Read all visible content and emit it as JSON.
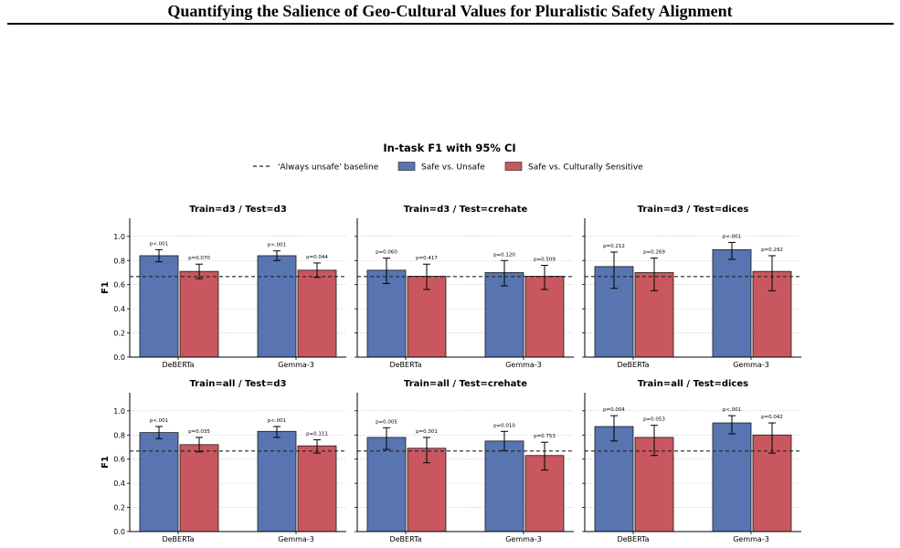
{
  "page": {
    "title": "Quantifying the Salience of Geo-Cultural Values for Pluralistic Safety Alignment"
  },
  "chart_data": {
    "type": "bar",
    "title": "In-task F1 with 95% CI",
    "ylabel": "F1",
    "ylim": [
      0,
      1.15
    ],
    "yticks": [
      "0.0",
      "0.2",
      "0.4",
      "0.6",
      "0.8",
      "1.0"
    ],
    "grid": "horizontal dotted",
    "legend": {
      "position": "top-center",
      "entries": [
        "'Always unsafe' baseline",
        "Safe vs. Unsafe",
        "Safe vs. Culturally Sensitive"
      ]
    },
    "colors": {
      "safe_unsafe": "#5875b1",
      "safe_cultural": "#c8575f",
      "edge": "#1a1a1a",
      "baseline": "#222222"
    },
    "categories": [
      "DeBERTa",
      "Gemma-3"
    ],
    "panels": [
      {
        "title": "Train=d3  /  Test=d3",
        "baseline": 0.667,
        "groups": [
          {
            "category": "DeBERTa",
            "bars": [
              {
                "value": 0.84,
                "ci": [
                  0.79,
                  0.89
                ],
                "p": "p<.001"
              },
              {
                "value": 0.71,
                "ci": [
                  0.65,
                  0.77
                ],
                "p": "p=0.070"
              }
            ]
          },
          {
            "category": "Gemma-3",
            "bars": [
              {
                "value": 0.84,
                "ci": [
                  0.8,
                  0.88
                ],
                "p": "p<.001"
              },
              {
                "value": 0.72,
                "ci": [
                  0.66,
                  0.78
                ],
                "p": "p=0.044"
              }
            ]
          }
        ]
      },
      {
        "title": "Train=d3  /  Test=crehate",
        "baseline": 0.667,
        "groups": [
          {
            "category": "DeBERTa",
            "bars": [
              {
                "value": 0.72,
                "ci": [
                  0.61,
                  0.82
                ],
                "p": "p=0.060"
              },
              {
                "value": 0.67,
                "ci": [
                  0.56,
                  0.77
                ],
                "p": "p=0.417"
              }
            ]
          },
          {
            "category": "Gemma-3",
            "bars": [
              {
                "value": 0.7,
                "ci": [
                  0.59,
                  0.8
                ],
                "p": "p=0.120"
              },
              {
                "value": 0.67,
                "ci": [
                  0.56,
                  0.76
                ],
                "p": "p=0.509"
              }
            ]
          }
        ]
      },
      {
        "title": "Train=d3  /  Test=dices",
        "baseline": 0.667,
        "groups": [
          {
            "category": "DeBERTa",
            "bars": [
              {
                "value": 0.75,
                "ci": [
                  0.57,
                  0.87
                ],
                "p": "p=0.212"
              },
              {
                "value": 0.7,
                "ci": [
                  0.55,
                  0.82
                ],
                "p": "p=0.269"
              }
            ]
          },
          {
            "category": "Gemma-3",
            "bars": [
              {
                "value": 0.89,
                "ci": [
                  0.81,
                  0.95
                ],
                "p": "p<.001"
              },
              {
                "value": 0.71,
                "ci": [
                  0.55,
                  0.84
                ],
                "p": "p=0.292"
              }
            ]
          }
        ]
      },
      {
        "title": "Train=all  /  Test=d3",
        "baseline": 0.667,
        "groups": [
          {
            "category": "DeBERTa",
            "bars": [
              {
                "value": 0.82,
                "ci": [
                  0.77,
                  0.87
                ],
                "p": "p<.001"
              },
              {
                "value": 0.72,
                "ci": [
                  0.66,
                  0.78
                ],
                "p": "p=0.035"
              }
            ]
          },
          {
            "category": "Gemma-3",
            "bars": [
              {
                "value": 0.83,
                "ci": [
                  0.78,
                  0.87
                ],
                "p": "p<.001"
              },
              {
                "value": 0.71,
                "ci": [
                  0.65,
                  0.76
                ],
                "p": "p=0.111"
              }
            ]
          }
        ]
      },
      {
        "title": "Train=all  /  Test=crehate",
        "baseline": 0.667,
        "groups": [
          {
            "category": "DeBERTa",
            "bars": [
              {
                "value": 0.78,
                "ci": [
                  0.68,
                  0.86
                ],
                "p": "p=0.005"
              },
              {
                "value": 0.69,
                "ci": [
                  0.57,
                  0.78
                ],
                "p": "p=0.301"
              }
            ]
          },
          {
            "category": "Gemma-3",
            "bars": [
              {
                "value": 0.75,
                "ci": [
                  0.67,
                  0.83
                ],
                "p": "p=0.010"
              },
              {
                "value": 0.63,
                "ci": [
                  0.51,
                  0.74
                ],
                "p": "p=0.753"
              }
            ]
          }
        ]
      },
      {
        "title": "Train=all  /  Test=dices",
        "baseline": 0.667,
        "groups": [
          {
            "category": "DeBERTa",
            "bars": [
              {
                "value": 0.87,
                "ci": [
                  0.75,
                  0.96
                ],
                "p": "p=0.004"
              },
              {
                "value": 0.78,
                "ci": [
                  0.63,
                  0.88
                ],
                "p": "p=0.053"
              }
            ]
          },
          {
            "category": "Gemma-3",
            "bars": [
              {
                "value": 0.9,
                "ci": [
                  0.81,
                  0.96
                ],
                "p": "p<.001"
              },
              {
                "value": 0.8,
                "ci": [
                  0.65,
                  0.9
                ],
                "p": "p=0.042"
              }
            ]
          }
        ]
      }
    ]
  }
}
